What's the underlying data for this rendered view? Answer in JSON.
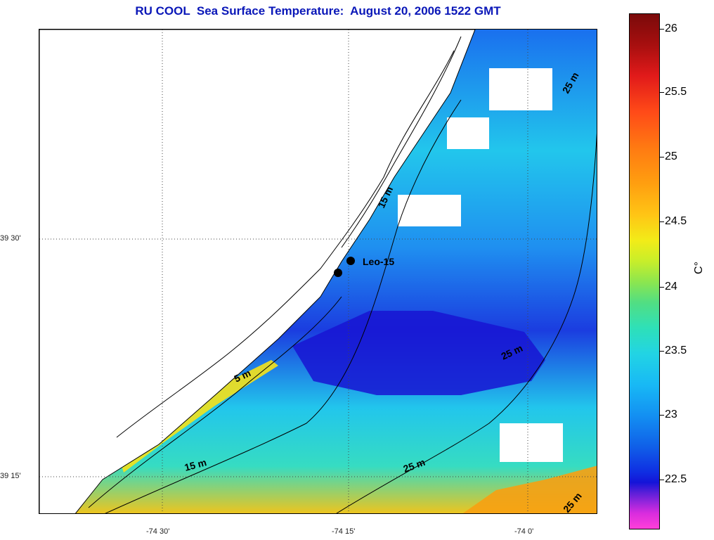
{
  "title": "RU COOL  Sea Surface Temperature:  August 20, 2006 1522 GMT",
  "map": {
    "station_label": "Leo-15",
    "depth_contours": [
      "5 m",
      "15 m",
      "15 m",
      "25 m",
      "25 m",
      "25 m",
      "25 m"
    ],
    "lat_labels": [
      "39 30'",
      "39 15'"
    ],
    "lon_labels": [
      "-74 30'",
      "-74 15'",
      "-74 0'"
    ]
  },
  "colorbar": {
    "labels": [
      "26",
      "25.5",
      "25",
      "24.5",
      "24",
      "23.5",
      "23",
      "22.5"
    ],
    "unit": "C°",
    "colors": {
      "warm": "#7a0a0a",
      "mid": "#22d4e4",
      "cool": "#1414d8",
      "coldest": "#ff3fd9"
    }
  }
}
